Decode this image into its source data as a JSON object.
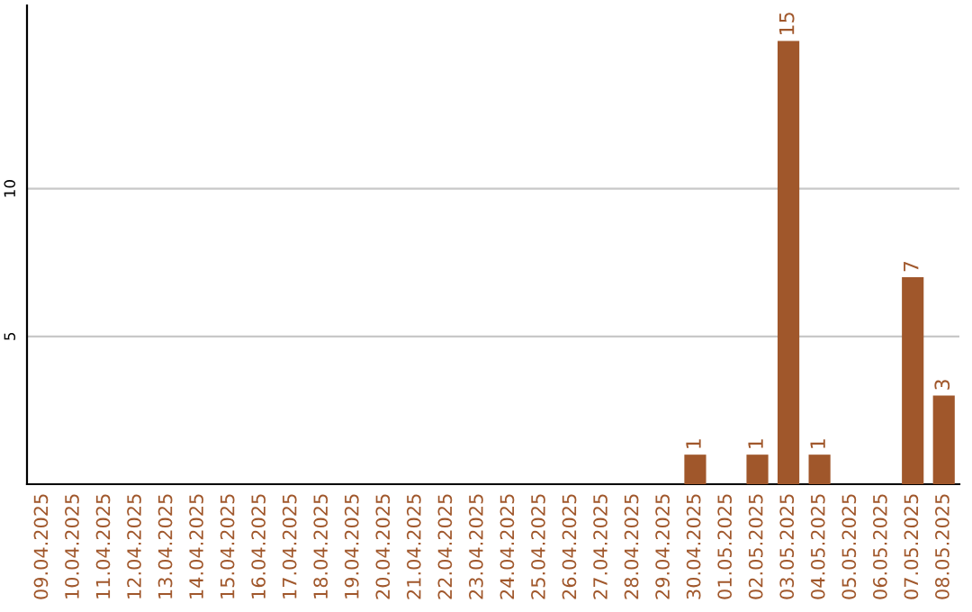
{
  "chart_data": {
    "type": "bar",
    "categories": [
      "09.04.2025",
      "10.04.2025",
      "11.04.2025",
      "12.04.2025",
      "13.04.2025",
      "14.04.2025",
      "15.04.2025",
      "16.04.2025",
      "17.04.2025",
      "18.04.2025",
      "19.04.2025",
      "20.04.2025",
      "21.04.2025",
      "22.04.2025",
      "23.04.2025",
      "24.04.2025",
      "25.04.2025",
      "26.04.2025",
      "27.04.2025",
      "28.04.2025",
      "29.04.2025",
      "30.04.2025",
      "01.05.2025",
      "02.05.2025",
      "03.05.2025",
      "04.05.2025",
      "05.05.2025",
      "06.05.2025",
      "07.05.2025",
      "08.05.2025"
    ],
    "values": [
      0,
      0,
      0,
      0,
      0,
      0,
      0,
      0,
      0,
      0,
      0,
      0,
      0,
      0,
      0,
      0,
      0,
      0,
      0,
      0,
      0,
      1,
      0,
      1,
      15,
      1,
      0,
      0,
      7,
      3
    ],
    "value_labels": [
      null,
      null,
      null,
      null,
      null,
      null,
      null,
      null,
      null,
      null,
      null,
      null,
      null,
      null,
      null,
      null,
      null,
      null,
      null,
      null,
      null,
      "1",
      null,
      "1",
      "15",
      "1",
      null,
      null,
      "7",
      "3"
    ],
    "color": "#a0572b",
    "ylim": [
      0,
      16.2
    ],
    "yticks": [
      5,
      10
    ],
    "grid": "y",
    "legend": false
  }
}
